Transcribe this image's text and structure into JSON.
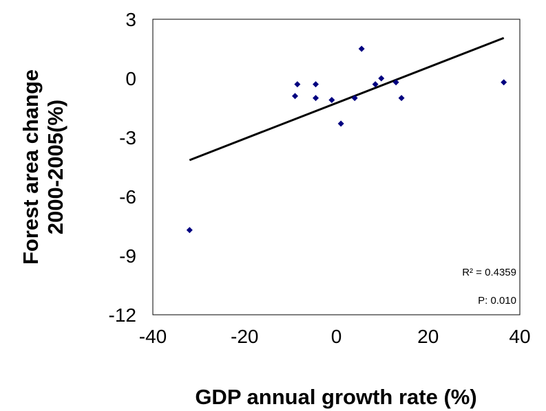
{
  "chart_data": {
    "type": "scatter",
    "xlabel": "GDP annual growth rate (%)",
    "ylabel_lines": [
      "Forest area change",
      "2000-2005(%)"
    ],
    "xlim": [
      -40,
      40
    ],
    "ylim": [
      -12,
      3
    ],
    "x_ticks": [
      -40,
      -20,
      0,
      20,
      40
    ],
    "y_ticks": [
      3,
      0,
      -3,
      -6,
      -9,
      -12
    ],
    "x_tick_labels": [
      "-40",
      "-20",
      "0",
      "20",
      "40"
    ],
    "y_tick_labels": [
      "3",
      "0",
      "-3",
      "-6",
      "-9",
      "-12"
    ],
    "grid": false,
    "legend": "none",
    "series": [
      {
        "marker": "diamond",
        "color": "#000080",
        "points": [
          {
            "x": -32,
            "y": -7.7
          },
          {
            "x": -9,
            "y": -0.9
          },
          {
            "x": -8.5,
            "y": -0.3
          },
          {
            "x": -4.5,
            "y": -0.3
          },
          {
            "x": -4.5,
            "y": -1.0
          },
          {
            "x": -1,
            "y": -1.1
          },
          {
            "x": 1,
            "y": -2.3
          },
          {
            "x": 4,
            "y": -1.0
          },
          {
            "x": 5.5,
            "y": 1.5
          },
          {
            "x": 8.5,
            "y": -0.3
          },
          {
            "x": 9.8,
            "y": 0.0
          },
          {
            "x": 13,
            "y": -0.2
          },
          {
            "x": 14.2,
            "y": -1.0
          },
          {
            "x": 36.5,
            "y": -0.2
          }
        ]
      }
    ],
    "trendline": {
      "color": "#000000",
      "points": [
        {
          "x": -32,
          "y": -4.15
        },
        {
          "x": 36.5,
          "y": 2.05
        }
      ]
    },
    "annotations": [
      {
        "id": "r2",
        "text": "R² = 0.4359"
      },
      {
        "id": "p",
        "text": "P: 0.010"
      }
    ]
  }
}
